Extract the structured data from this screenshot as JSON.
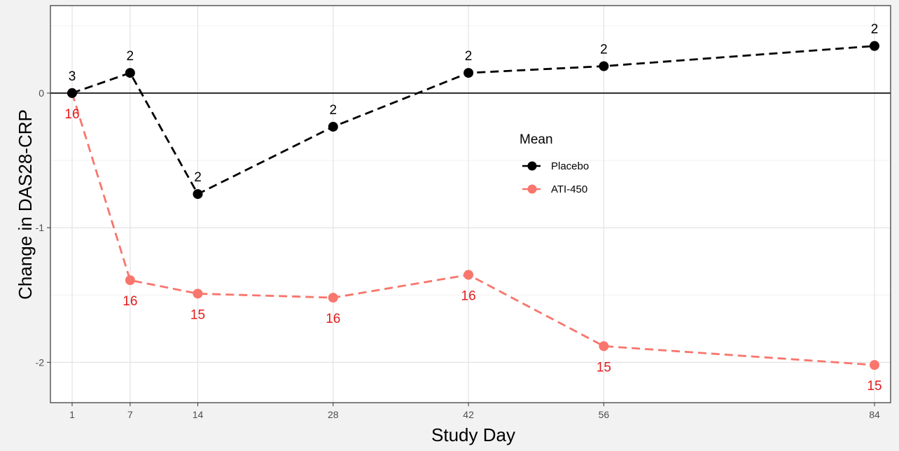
{
  "chart_data": {
    "type": "line",
    "xlabel": "Study Day",
    "ylabel": "Change in DAS28-CRP",
    "x": [
      1,
      7,
      14,
      28,
      42,
      56,
      84
    ],
    "x_ticks": [
      "1",
      "7",
      "14",
      "28",
      "42",
      "56",
      "84"
    ],
    "y_ticks": [
      {
        "value": 0,
        "label": "0"
      },
      {
        "value": -1,
        "label": "-1"
      },
      {
        "value": -2,
        "label": "-2"
      }
    ],
    "ylim": [
      -2.3,
      0.65
    ],
    "grid": true,
    "reference_line_y": 0,
    "legend": {
      "title": "Mean",
      "position": "right",
      "entries": [
        "Placebo",
        "ATI-450"
      ]
    },
    "series": [
      {
        "name": "Placebo",
        "color": "#000000",
        "line_style": "dashed",
        "label_position": "above",
        "values": [
          0.0,
          0.15,
          -0.75,
          -0.25,
          0.15,
          0.2,
          0.35
        ],
        "counts": [
          "3",
          "2",
          "2",
          "2",
          "2",
          "2",
          "2"
        ]
      },
      {
        "name": "ATI-450",
        "color": "#F8766D",
        "label_color": "#E41A1C",
        "line_style": "dashed",
        "label_position": "below",
        "values": [
          0.0,
          -1.39,
          -1.49,
          -1.52,
          -1.35,
          -1.88,
          -2.02
        ],
        "counts": [
          "16",
          "16",
          "15",
          "16",
          "16",
          "15",
          "15"
        ]
      }
    ]
  }
}
